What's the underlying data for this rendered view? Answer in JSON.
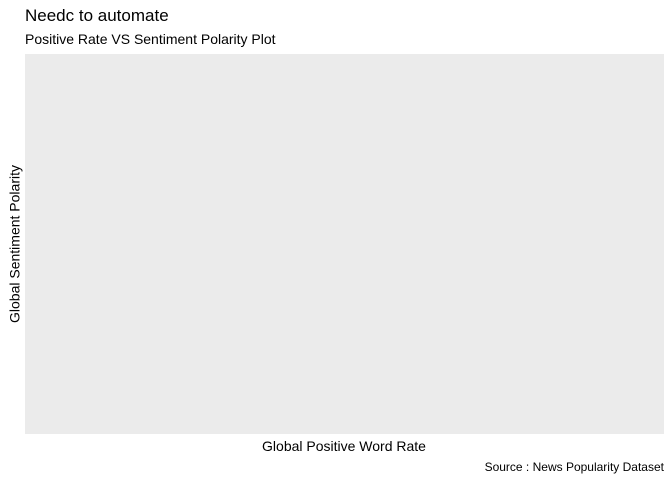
{
  "chart_data": {
    "type": "scatter",
    "title": "Needc to automate",
    "subtitle": "Positive Rate VS Sentiment Polarity Plot",
    "xlabel": "Global Positive Word Rate",
    "ylabel": "Global Sentiment Polarity",
    "caption": "Source : News Popularity Dataset",
    "x": [],
    "y": [],
    "grid": false,
    "legend": "none",
    "panel_background": "#ebebeb"
  }
}
